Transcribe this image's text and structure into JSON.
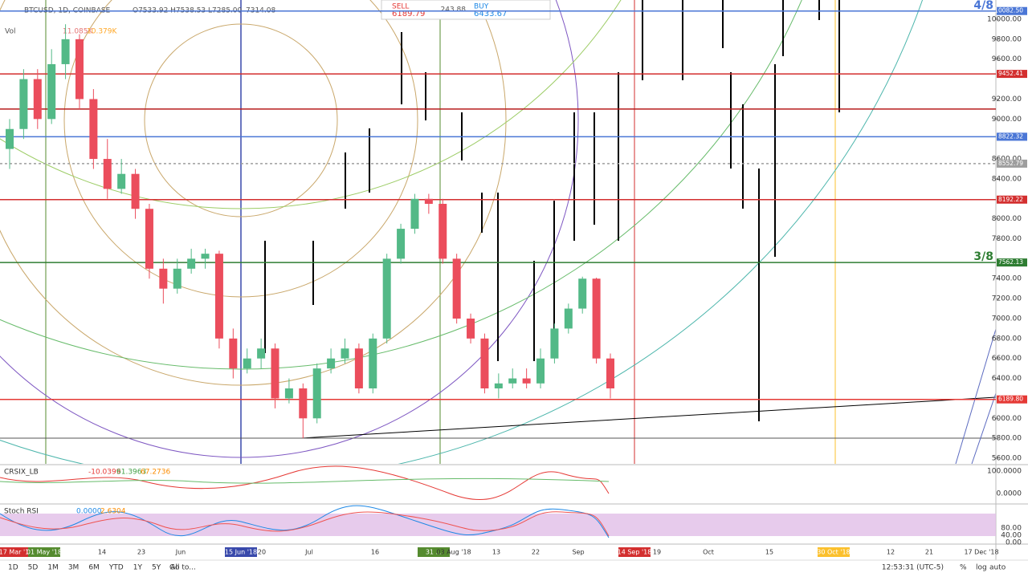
{
  "header": {
    "symbol": "BTCUSD, 1D, COINBASE",
    "ohlc": "O7533.92 H7538.53 L7285.00",
    "close": "7314.08",
    "volume_label": "Vol",
    "volume_values": [
      "11.085K",
      "10.379K"
    ]
  },
  "trade": {
    "sell_label": "SELL",
    "sell": "6189.79",
    "spread": "243.88",
    "buy_label": "BUY",
    "buy": "6433.67"
  },
  "chart_data": {
    "type": "candlestick",
    "up_color": "#53b987",
    "down_color": "#eb4d5c",
    "ylim": [
      5544,
      10193
    ],
    "yticks": [
      {
        "value": 10000,
        "label": "10000.00"
      },
      {
        "value": 9800,
        "label": "9800.00"
      },
      {
        "value": 9600,
        "label": "9600.00"
      },
      {
        "value": 9200,
        "label": "9200.00"
      },
      {
        "value": 9000,
        "label": "9000.00"
      },
      {
        "value": 8600,
        "label": "8600.00"
      },
      {
        "value": 8400,
        "label": "8400.00"
      },
      {
        "value": 8000,
        "label": "8000.00"
      },
      {
        "value": 7800,
        "label": "7800.00"
      },
      {
        "value": 7400,
        "label": "7400.00"
      },
      {
        "value": 7200,
        "label": "7200.00"
      },
      {
        "value": 7000,
        "label": "7000.00"
      },
      {
        "value": 6800,
        "label": "6800.00"
      },
      {
        "value": 6600,
        "label": "6600.00"
      },
      {
        "value": 6400,
        "label": "6400.00"
      },
      {
        "value": 6000,
        "label": "6000.00"
      },
      {
        "value": 5800,
        "label": "5800.00"
      },
      {
        "value": 5600,
        "label": "5600.00"
      }
    ],
    "levels": [
      {
        "value": 10082.5,
        "label": "10082.50",
        "color": "#4a76d6",
        "tag": "4/8"
      },
      {
        "value": 9452.41,
        "label": "9452.41",
        "color": "#d32f2f"
      },
      {
        "value": 9100,
        "color": "#b71c1c"
      },
      {
        "value": 8822.32,
        "label": "8822.32",
        "color": "#4a76d6"
      },
      {
        "value": 8552.79,
        "label": "8552.79",
        "color": "#9e9e9e"
      },
      {
        "value": 8192.22,
        "label": "8192.22",
        "color": "#d32f2f"
      },
      {
        "value": 7562.13,
        "label": "7562.13",
        "color": "#2e7d32",
        "tag": "3/8"
      },
      {
        "value": 6189.8,
        "label": "6189.80",
        "color": "#e53935"
      }
    ],
    "candles": [
      [
        8700,
        9000,
        8500,
        8900
      ],
      [
        8900,
        9500,
        8800,
        9400
      ],
      [
        9400,
        9500,
        8900,
        9000
      ],
      [
        9000,
        9700,
        8950,
        9550
      ],
      [
        9550,
        9950,
        9400,
        9800
      ],
      [
        9800,
        9850,
        9100,
        9200
      ],
      [
        9200,
        9300,
        8500,
        8600
      ],
      [
        8600,
        8800,
        8200,
        8300
      ],
      [
        8300,
        8600,
        8250,
        8450
      ],
      [
        8450,
        8500,
        8000,
        8100
      ],
      [
        8100,
        8150,
        7400,
        7500
      ],
      [
        7500,
        7600,
        7150,
        7300
      ],
      [
        7300,
        7600,
        7250,
        7500
      ],
      [
        7500,
        7700,
        7450,
        7600
      ],
      [
        7600,
        7700,
        7500,
        7650
      ],
      [
        7650,
        7680,
        6700,
        6800
      ],
      [
        6800,
        6900,
        6400,
        6500
      ],
      [
        6500,
        6700,
        6450,
        6600
      ],
      [
        6600,
        6800,
        6500,
        6700
      ],
      [
        6700,
        6750,
        6100,
        6200
      ],
      [
        6200,
        6400,
        6150,
        6300
      ],
      [
        6300,
        6350,
        5800,
        6000
      ],
      [
        6000,
        6550,
        5950,
        6500
      ],
      [
        6500,
        6700,
        6450,
        6600
      ],
      [
        6600,
        6800,
        6550,
        6700
      ],
      [
        6700,
        6750,
        6250,
        6300
      ],
      [
        6300,
        6850,
        6250,
        6800
      ],
      [
        6800,
        7650,
        6750,
        7600
      ],
      [
        7600,
        7950,
        7550,
        7900
      ],
      [
        7900,
        8250,
        7850,
        8200
      ],
      [
        8200,
        8250,
        8050,
        8150
      ],
      [
        8150,
        8200,
        7550,
        7600
      ],
      [
        7600,
        7650,
        6950,
        7000
      ],
      [
        7000,
        7050,
        6750,
        6800
      ],
      [
        6800,
        6850,
        6250,
        6300
      ],
      [
        6300,
        6450,
        6200,
        6350
      ],
      [
        6350,
        6500,
        6300,
        6400
      ],
      [
        6400,
        6500,
        6300,
        6350
      ],
      [
        6350,
        6700,
        6300,
        6600
      ],
      [
        6600,
        6950,
        6550,
        6900
      ],
      [
        6900,
        7150,
        6850,
        7100
      ],
      [
        7100,
        7420,
        7050,
        7400
      ],
      [
        7400,
        7410,
        6550,
        6600
      ],
      [
        6600,
        6650,
        6200,
        6300
      ]
    ],
    "date_labels": [
      "17 Mar '18",
      "01 May '18",
      "14",
      "23",
      "Jun",
      "15 Jun '18",
      "20",
      "Jul",
      "16",
      "31 ...",
      "03 Aug '18",
      "13",
      "22",
      "Sep",
      "14 Sep '18",
      "19",
      "Oct",
      "15",
      "30 Oct '18",
      "12",
      "21",
      "17 Dec '18"
    ]
  },
  "crsi": {
    "name": "CRSIX_LB",
    "values": [
      "-10.0399",
      "61.3963",
      "67.2736"
    ],
    "axis": [
      "100.0000",
      "0.0000"
    ]
  },
  "stoch": {
    "name": "Stoch RSI",
    "values": [
      "0.0000",
      "2.6304"
    ],
    "axis": [
      "80.00",
      "40.00",
      "0.00"
    ]
  },
  "toolbar": {
    "ranges": [
      "1D",
      "5D",
      "1M",
      "3M",
      "6M",
      "YTD",
      "1Y",
      "5Y",
      "All"
    ],
    "goto": "Go to...",
    "clock": "12:53:31 (UTC-5)",
    "options": [
      "%",
      "log",
      "auto"
    ]
  }
}
